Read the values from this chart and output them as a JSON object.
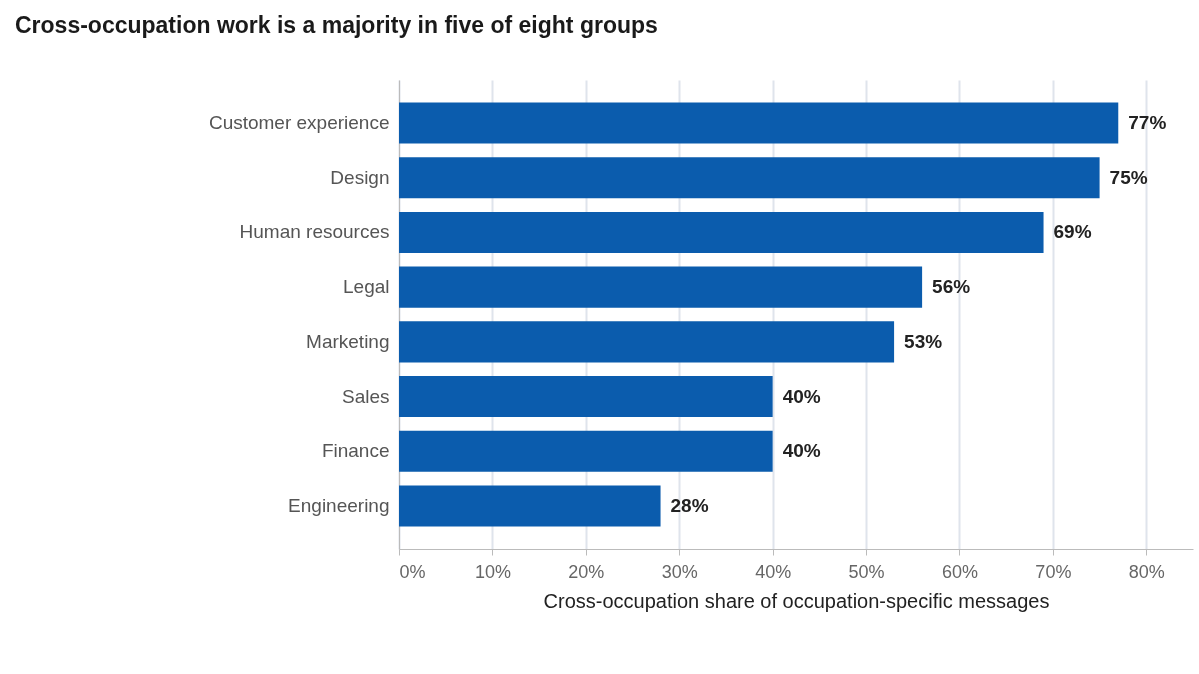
{
  "chart_data": {
    "type": "bar",
    "orientation": "horizontal",
    "title": "Cross-occupation work is a majority in five of eight groups",
    "xlabel": "Cross-occupation share of occupation-specific messages",
    "categories": [
      "Customer experience",
      "Design",
      "Human resources",
      "Legal",
      "Marketing",
      "Sales",
      "Finance",
      "Engineering"
    ],
    "values": [
      77,
      75,
      69,
      56,
      53,
      40,
      40,
      28
    ],
    "value_labels": [
      "77%",
      "75%",
      "69%",
      "56%",
      "53%",
      "40%",
      "40%",
      "28%"
    ],
    "color": "#0b5cad",
    "xlim": [
      0,
      85
    ],
    "xticks": [
      {
        "value": 0,
        "label": "0%"
      },
      {
        "value": 10,
        "label": "10%"
      },
      {
        "value": 20,
        "label": "20%"
      },
      {
        "value": 30,
        "label": "30%"
      },
      {
        "value": 40,
        "label": "40%"
      },
      {
        "value": 50,
        "label": "50%"
      },
      {
        "value": 60,
        "label": "60%"
      },
      {
        "value": 70,
        "label": "70%"
      },
      {
        "value": 80,
        "label": "80%"
      }
    ],
    "grid": "x"
  }
}
